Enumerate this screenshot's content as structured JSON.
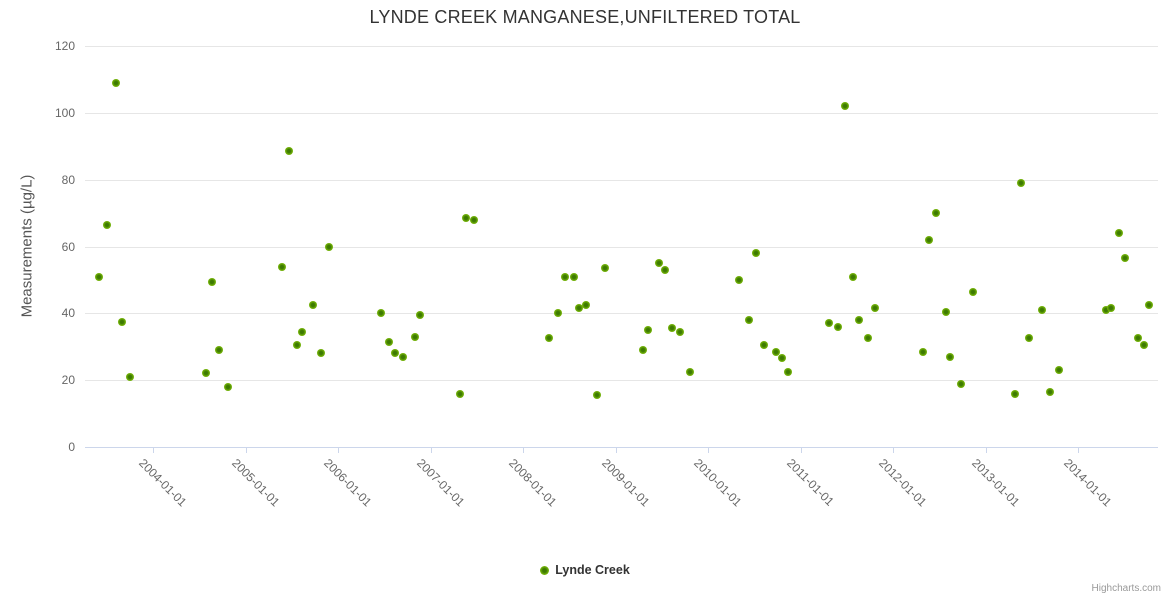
{
  "header": {
    "title": "LYNDE CREEK MANGANESE,UNFILTERED TOTAL"
  },
  "legend": {
    "label": "Lynde Creek"
  },
  "credits": {
    "label": "Highcharts.com"
  },
  "colors": {
    "series_marker_outer": "#7fc011",
    "series_marker_mid": "#72b109",
    "series_marker_inner": "#3d7a01",
    "title_text": "#333333",
    "axis_label_text": "#666666",
    "axis_line": "#ccd6eb",
    "grid_line": "#e6e6e6",
    "credits_text": "#999999"
  },
  "chart_data": {
    "type": "scatter",
    "title": "LYNDE CREEK MANGANESE,UNFILTERED TOTAL",
    "xlabel": "",
    "ylabel": "Measurements (µg/L)",
    "ylim": [
      0,
      120
    ],
    "yticks": [
      0,
      20,
      40,
      60,
      80,
      100,
      120
    ],
    "xtick_labels": [
      "2004-01-01",
      "2005-01-01",
      "2006-01-01",
      "2007-01-01",
      "2008-01-01",
      "2009-01-01",
      "2010-01-01",
      "2011-01-01",
      "2012-01-01",
      "2013-01-01",
      "2014-01-01"
    ],
    "grid": true,
    "legend_position": "bottom-center",
    "series": [
      {
        "name": "Lynde Creek",
        "color": "#72b109",
        "points": [
          [
            2003.42,
            51
          ],
          [
            2003.5,
            66.5
          ],
          [
            2003.6,
            109
          ],
          [
            2003.67,
            37.5
          ],
          [
            2003.75,
            21
          ],
          [
            2004.57,
            22
          ],
          [
            2004.64,
            49.5
          ],
          [
            2004.71,
            29
          ],
          [
            2004.81,
            18
          ],
          [
            2005.39,
            54
          ],
          [
            2005.47,
            88.5
          ],
          [
            2005.56,
            30.5
          ],
          [
            2005.61,
            34.5
          ],
          [
            2005.73,
            42.5
          ],
          [
            2005.82,
            28
          ],
          [
            2005.9,
            60
          ],
          [
            2006.47,
            40
          ],
          [
            2006.55,
            31.5
          ],
          [
            2006.62,
            28
          ],
          [
            2006.7,
            27
          ],
          [
            2006.83,
            33
          ],
          [
            2006.89,
            39.5
          ],
          [
            2007.32,
            16
          ],
          [
            2007.38,
            68.5
          ],
          [
            2007.47,
            68
          ],
          [
            2008.28,
            32.5
          ],
          [
            2008.38,
            40
          ],
          [
            2008.45,
            51
          ],
          [
            2008.55,
            51
          ],
          [
            2008.6,
            41.5
          ],
          [
            2008.68,
            42.5
          ],
          [
            2008.8,
            15.5
          ],
          [
            2008.89,
            53.5
          ],
          [
            2009.3,
            29
          ],
          [
            2009.35,
            35
          ],
          [
            2009.47,
            55
          ],
          [
            2009.54,
            53
          ],
          [
            2009.61,
            35.5
          ],
          [
            2009.7,
            34.5
          ],
          [
            2009.8,
            22.5
          ],
          [
            2010.34,
            50
          ],
          [
            2010.44,
            38
          ],
          [
            2010.52,
            58
          ],
          [
            2010.6,
            30.5
          ],
          [
            2010.73,
            28.5
          ],
          [
            2010.8,
            26.5
          ],
          [
            2010.86,
            22.5
          ],
          [
            2011.31,
            37
          ],
          [
            2011.4,
            36
          ],
          [
            2011.48,
            102
          ],
          [
            2011.57,
            51
          ],
          [
            2011.63,
            38
          ],
          [
            2011.73,
            32.5
          ],
          [
            2011.81,
            41.5
          ],
          [
            2012.32,
            28.5
          ],
          [
            2012.39,
            62
          ],
          [
            2012.47,
            70
          ],
          [
            2012.57,
            40.5
          ],
          [
            2012.62,
            27
          ],
          [
            2012.74,
            19
          ],
          [
            2012.86,
            46.5
          ],
          [
            2013.32,
            16
          ],
          [
            2013.38,
            79
          ],
          [
            2013.47,
            32.5
          ],
          [
            2013.61,
            41
          ],
          [
            2013.7,
            16.5
          ],
          [
            2013.79,
            23
          ],
          [
            2014.3,
            41
          ],
          [
            2014.36,
            41.5
          ],
          [
            2014.44,
            64
          ],
          [
            2014.51,
            56.5
          ],
          [
            2014.65,
            32.5
          ],
          [
            2014.71,
            30.5
          ],
          [
            2014.77,
            42.5
          ]
        ]
      }
    ]
  }
}
